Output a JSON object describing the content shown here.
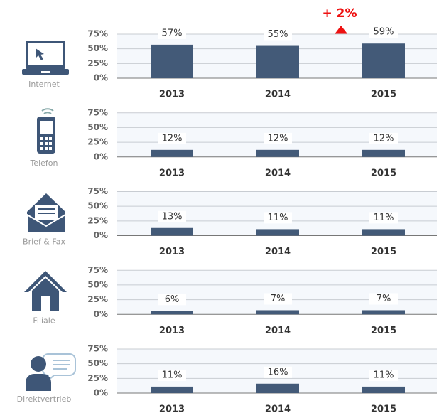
{
  "chart_data": [
    {
      "type": "bar",
      "title": "Internet",
      "annotation": "+ 2%",
      "categories": [
        "2013",
        "2014",
        "2015"
      ],
      "values": [
        57,
        55,
        59
      ],
      "value_labels": [
        "57%",
        "55%",
        "59%"
      ],
      "color": "#435a78",
      "ylim": [
        0,
        75
      ],
      "yticks": [
        {
          "value": 0,
          "label": "0%"
        },
        {
          "value": 25,
          "label": "25%"
        },
        {
          "value": 50,
          "label": "50%"
        },
        {
          "value": 75,
          "label": "75%"
        }
      ],
      "grid": true
    },
    {
      "type": "bar",
      "title": "Telefon",
      "categories": [
        "2013",
        "2014",
        "2015"
      ],
      "values": [
        12,
        12,
        12
      ],
      "value_labels": [
        "12%",
        "12%",
        "12%"
      ],
      "color": "#435a78",
      "ylim": [
        0,
        75
      ],
      "yticks": [
        {
          "value": 0,
          "label": "0%"
        },
        {
          "value": 25,
          "label": "25%"
        },
        {
          "value": 50,
          "label": "50%"
        },
        {
          "value": 75,
          "label": "75%"
        }
      ],
      "grid": true
    },
    {
      "type": "bar",
      "title": "Brief & Fax",
      "categories": [
        "2013",
        "2014",
        "2015"
      ],
      "values": [
        13,
        11,
        11
      ],
      "value_labels": [
        "13%",
        "11%",
        "11%"
      ],
      "color": "#435a78",
      "ylim": [
        0,
        75
      ],
      "yticks": [
        {
          "value": 0,
          "label": "0%"
        },
        {
          "value": 25,
          "label": "25%"
        },
        {
          "value": 50,
          "label": "50%"
        },
        {
          "value": 75,
          "label": "75%"
        }
      ],
      "grid": true
    },
    {
      "type": "bar",
      "title": "Filiale",
      "categories": [
        "2013",
        "2014",
        "2015"
      ],
      "values": [
        6,
        7,
        7
      ],
      "value_labels": [
        "6%",
        "7%",
        "7%"
      ],
      "color": "#435a78",
      "ylim": [
        0,
        75
      ],
      "yticks": [
        {
          "value": 0,
          "label": "0%"
        },
        {
          "value": 25,
          "label": "25%"
        },
        {
          "value": 50,
          "label": "50%"
        },
        {
          "value": 75,
          "label": "75%"
        }
      ],
      "grid": true
    },
    {
      "type": "bar",
      "title": "Direktvertrieb",
      "categories": [
        "2013",
        "2014",
        "2015"
      ],
      "values": [
        11,
        16,
        11
      ],
      "value_labels": [
        "11%",
        "16%",
        "11%"
      ],
      "color": "#435a78",
      "ylim": [
        0,
        75
      ],
      "yticks": [
        {
          "value": 0,
          "label": "0%"
        },
        {
          "value": 25,
          "label": "25%"
        },
        {
          "value": 50,
          "label": "50%"
        },
        {
          "value": 75,
          "label": "75%"
        }
      ],
      "grid": true
    }
  ]
}
